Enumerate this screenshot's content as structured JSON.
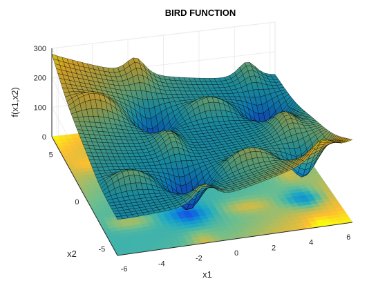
{
  "chart_data": {
    "type": "surface",
    "title": "BIRD FUNCTION",
    "function": "f(x1,x2) = sin(x1)*exp((1-cos(x2))^2) + cos(x2)*exp((1-sin(x1))^2) + (x1-x2)^2",
    "xlabel": "x1",
    "ylabel": "x2",
    "zlabel": "f(x1,x2)",
    "xlim": [
      -6.2832,
      6.2832
    ],
    "ylim": [
      -6.2832,
      6.2832
    ],
    "zlim": [
      0,
      300
    ],
    "xticks": [
      -6,
      -4,
      -2,
      0,
      2,
      4,
      6
    ],
    "yticks": [
      -5,
      0,
      5
    ],
    "zticks": [
      0,
      100,
      200,
      300
    ],
    "colormap": "parula",
    "contour_projection": true,
    "grid": true,
    "edge_color": "#000000",
    "background": "#ffffff"
  }
}
